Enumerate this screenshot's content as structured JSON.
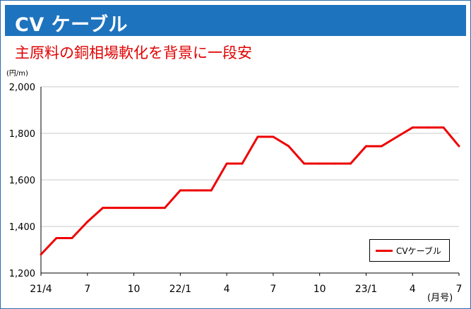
{
  "title": "CV ケーブル",
  "subtitle": "主原料の銅相場軟化を背景に一段安",
  "y_unit": "(円/m)",
  "x_unit": "(月号)",
  "colors": {
    "title_bar": "#1e73be",
    "subtitle": "#e00000",
    "line": "#ee0000"
  },
  "chart_data": {
    "type": "line",
    "x_tick_labels": [
      "21/4",
      "7",
      "10",
      "22/1",
      "4",
      "7",
      "10",
      "23/1",
      "4",
      "7"
    ],
    "x_months": [
      "2021-04",
      "2021-05",
      "2021-06",
      "2021-07",
      "2021-08",
      "2021-09",
      "2021-10",
      "2021-11",
      "2021-12",
      "2022-01",
      "2022-02",
      "2022-03",
      "2022-04",
      "2022-05",
      "2022-06",
      "2022-07",
      "2022-08",
      "2022-09",
      "2022-10",
      "2022-11",
      "2022-12",
      "2023-01",
      "2023-02",
      "2023-03",
      "2023-04",
      "2023-05",
      "2023-06",
      "2023-07"
    ],
    "series": [
      {
        "name": "CVケーブル",
        "values": [
          1280,
          1350,
          1350,
          1420,
          1480,
          1480,
          1480,
          1480,
          1480,
          1555,
          1555,
          1555,
          1670,
          1670,
          1785,
          1785,
          1745,
          1670,
          1670,
          1670,
          1670,
          1745,
          1745,
          1785,
          1825,
          1825,
          1825,
          1745
        ]
      }
    ],
    "y_ticks": [
      1200,
      1400,
      1600,
      1800,
      2000
    ],
    "y_tick_labels": [
      "1,200",
      "1,400",
      "1,600",
      "1,800",
      "2,000"
    ],
    "ylim": [
      1200,
      2000
    ],
    "grid": true,
    "legend": "bottom-right"
  }
}
